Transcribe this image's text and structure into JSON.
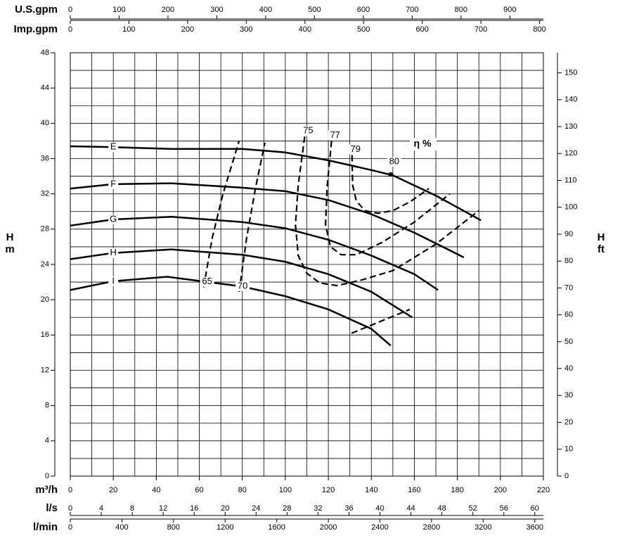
{
  "chart_data": {
    "type": "line",
    "color": "#000000",
    "grid": true,
    "xlabel": "m³/h",
    "xlim": [
      0,
      220
    ],
    "xticks": [
      0,
      20,
      40,
      60,
      80,
      100,
      120,
      140,
      160,
      180,
      200,
      220
    ],
    "x_grid": [
      0,
      10,
      20,
      30,
      40,
      50,
      60,
      70,
      80,
      90,
      100,
      110,
      120,
      130,
      140,
      150,
      160,
      170,
      180,
      190,
      200,
      210,
      220
    ],
    "ylabel": [
      "H",
      "m"
    ],
    "ylim": [
      0,
      48
    ],
    "yticks": [
      0,
      4,
      8,
      12,
      16,
      20,
      24,
      28,
      32,
      36,
      40,
      44,
      48
    ],
    "y_grid": [
      0,
      2,
      4,
      6,
      8,
      10,
      12,
      14,
      16,
      18,
      20,
      22,
      24,
      26,
      28,
      30,
      32,
      34,
      36,
      38,
      40,
      42,
      44,
      46,
      48
    ],
    "y2label": [
      "H",
      "ft"
    ],
    "y2lim": [
      0,
      157.48
    ],
    "y2ticks": [
      0,
      10,
      20,
      30,
      40,
      50,
      60,
      70,
      80,
      90,
      100,
      110,
      120,
      130,
      140,
      150
    ],
    "secondary_x_axes": [
      {
        "label": "U.S.gpm",
        "position": "top",
        "lim": [
          0,
          968.6
        ],
        "ticks": [
          0,
          100,
          200,
          300,
          400,
          500,
          600,
          700,
          800,
          900
        ]
      },
      {
        "label": "Imp.gpm",
        "position": "top",
        "lim": [
          0,
          806.5
        ],
        "ticks": [
          0,
          100,
          200,
          300,
          400,
          500,
          600,
          700,
          800
        ]
      },
      {
        "label": "l/s",
        "position": "bottom",
        "lim": [
          0,
          61.11
        ],
        "ticks": [
          0,
          4,
          8,
          12,
          16,
          20,
          24,
          28,
          32,
          36,
          40,
          44,
          48,
          52,
          56,
          60
        ]
      },
      {
        "label": "l/min",
        "position": "bottom",
        "lim": [
          0,
          3666.7
        ],
        "ticks": [
          0,
          400,
          800,
          1200,
          1600,
          2000,
          2400,
          2800,
          3200,
          3600
        ]
      }
    ],
    "series": [
      {
        "name": "E",
        "x": [
          0,
          20,
          47,
          80,
          100,
          120,
          140,
          150,
          170,
          191
        ],
        "values": [
          37.4,
          37.3,
          37.1,
          37.1,
          36.7,
          35.8,
          34.7,
          34.1,
          31.8,
          29.0
        ]
      },
      {
        "name": "F",
        "x": [
          0,
          20,
          47,
          80,
          100,
          120,
          140,
          160,
          183
        ],
        "values": [
          32.6,
          33.1,
          33.2,
          32.7,
          32.3,
          31.3,
          29.7,
          27.6,
          24.8
        ]
      },
      {
        "name": "G",
        "x": [
          0,
          20,
          47,
          80,
          100,
          120,
          140,
          160,
          171
        ],
        "values": [
          28.4,
          29.1,
          29.4,
          28.8,
          28.1,
          26.8,
          25.0,
          22.9,
          21.1
        ]
      },
      {
        "name": "H",
        "x": [
          0,
          20,
          47,
          80,
          100,
          120,
          140,
          159
        ],
        "values": [
          24.6,
          25.3,
          25.7,
          25.1,
          24.3,
          22.9,
          20.9,
          18.0
        ]
      },
      {
        "name": "I",
        "x": [
          0,
          20,
          45,
          80,
          100,
          120,
          140,
          149
        ],
        "values": [
          21.1,
          22.1,
          22.6,
          21.5,
          20.4,
          18.9,
          16.7,
          14.8
        ]
      }
    ],
    "efficiency_label": "η %",
    "efficiency_curves": [
      {
        "name": "65",
        "x": [
          62,
          66,
          71,
          78.5
        ],
        "values": [
          21.4,
          27,
          32,
          38
        ]
      },
      {
        "name": "70",
        "x": [
          78.5,
          82,
          86,
          90.5
        ],
        "values": [
          20.9,
          27,
          32.5,
          37.8
        ]
      },
      {
        "name": "75",
        "x": [
          109,
          106,
          104.7,
          106,
          110,
          116,
          124,
          135,
          150,
          170,
          190
        ],
        "values": [
          38.5,
          33,
          28.5,
          25,
          23,
          21.9,
          21.6,
          22.2,
          23.3,
          26.3,
          30.1
        ]
      },
      {
        "name": "77",
        "x": [
          121.5,
          119.5,
          118.7,
          121,
          126,
          133,
          145,
          160,
          176.5
        ],
        "values": [
          38,
          33,
          28.5,
          26,
          25.1,
          25.1,
          26.5,
          28.8,
          32
        ]
      },
      {
        "name": "79",
        "x": [
          131,
          131.3,
          133,
          137,
          143,
          150,
          158,
          166.7
        ],
        "values": [
          36.4,
          33,
          31.2,
          30.1,
          29.8,
          30.1,
          31.1,
          32.6
        ]
      },
      {
        "x": [
          130.8,
          157.9
        ],
        "values": [
          16.2,
          18.9
        ]
      }
    ],
    "points": [
      {
        "label": "80",
        "x": 149,
        "y": 34.2
      }
    ]
  }
}
